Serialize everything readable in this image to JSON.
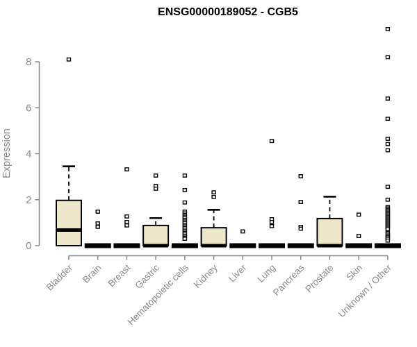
{
  "chart_data": {
    "type": "boxplot",
    "title": "ENSG00000189052 - CGB5",
    "xlabel": "",
    "ylabel": "Expression",
    "ylim": [
      0,
      8
    ],
    "yticks": [
      0,
      2,
      4,
      6,
      8
    ],
    "grid": false,
    "legend": false,
    "colors": {
      "box_fill": "#EDE8CB",
      "box_stroke": "#000000",
      "median": "#000000",
      "outlier_fill": "#ffffff",
      "axis": "#868686",
      "tick_label": "#8a8a8a",
      "title": "#000000",
      "background": "#ffffff"
    },
    "categories": [
      "Bladder",
      "Brain",
      "Breast",
      "Gastric",
      "Hematopoietic cells",
      "Kidney",
      "Liver",
      "Lung",
      "Pancreas",
      "Prostate",
      "Skin",
      "Unknown / Other"
    ],
    "series": [
      {
        "name": "Bladder",
        "q1": 0,
        "median": 0.68,
        "q3": 1.97,
        "whisker_low": 0,
        "whisker_high": 3.45,
        "outliers": [
          8.1
        ]
      },
      {
        "name": "Brain",
        "q1": 0,
        "median": 0,
        "q3": 0,
        "whisker_low": 0,
        "whisker_high": 0,
        "outliers": [
          1.48,
          0.97,
          0.82
        ]
      },
      {
        "name": "Breast",
        "q1": 0,
        "median": 0,
        "q3": 0,
        "whisker_low": 0,
        "whisker_high": 0,
        "outliers": [
          3.32,
          1.27,
          1.03,
          0.88
        ]
      },
      {
        "name": "Gastric",
        "q1": 0,
        "median": 0,
        "q3": 0.88,
        "whisker_low": 0,
        "whisker_high": 1.2,
        "outliers": [
          3.05,
          2.6,
          2.48
        ]
      },
      {
        "name": "Hematopoietic cells",
        "q1": 0,
        "median": 0,
        "q3": 0,
        "whisker_low": 0,
        "whisker_high": 0,
        "outliers": [
          3.05,
          2.42,
          1.88,
          1.48,
          1.4,
          1.33,
          1.26,
          1.19,
          1.12,
          1.05,
          0.98,
          0.91,
          0.84,
          0.77,
          0.7,
          0.63,
          0.56,
          0.49,
          0.42,
          0.35,
          0.3
        ]
      },
      {
        "name": "Kidney",
        "q1": 0,
        "median": 0,
        "q3": 0.78,
        "whisker_low": 0,
        "whisker_high": 1.56,
        "outliers": [
          2.32,
          2.12
        ]
      },
      {
        "name": "Liver",
        "q1": 0,
        "median": 0,
        "q3": 0,
        "whisker_low": 0,
        "whisker_high": 0,
        "outliers": [
          0.62
        ]
      },
      {
        "name": "Lung",
        "q1": 0,
        "median": 0,
        "q3": 0,
        "whisker_low": 0,
        "whisker_high": 0,
        "outliers": [
          4.55,
          1.15,
          1.03,
          0.85
        ]
      },
      {
        "name": "Pancreas",
        "q1": 0,
        "median": 0,
        "q3": 0,
        "whisker_low": 0,
        "whisker_high": 0,
        "outliers": [
          3.02,
          1.9,
          0.82,
          0.74
        ]
      },
      {
        "name": "Prostate",
        "q1": 0,
        "median": 0,
        "q3": 1.18,
        "whisker_low": 0,
        "whisker_high": 2.13,
        "outliers": []
      },
      {
        "name": "Skin",
        "q1": 0,
        "median": 0,
        "q3": 0,
        "whisker_low": 0,
        "whisker_high": 0,
        "outliers": [
          1.35,
          0.42
        ]
      },
      {
        "name": "Unknown / Other",
        "q1": 0,
        "median": 0,
        "q3": 0,
        "whisker_low": 0,
        "whisker_high": 0,
        "outliers": [
          9.42,
          8.2,
          6.4,
          5.52,
          4.65,
          4.42,
          4.15,
          2.56,
          2.0,
          1.68,
          1.62,
          1.56,
          1.5,
          1.44,
          1.38,
          1.32,
          1.26,
          1.2,
          1.14,
          1.08,
          1.02,
          0.96,
          0.9,
          0.84,
          0.78,
          0.72,
          0.55,
          0.48,
          0.42,
          0.36,
          0.3,
          0.22
        ]
      }
    ]
  }
}
